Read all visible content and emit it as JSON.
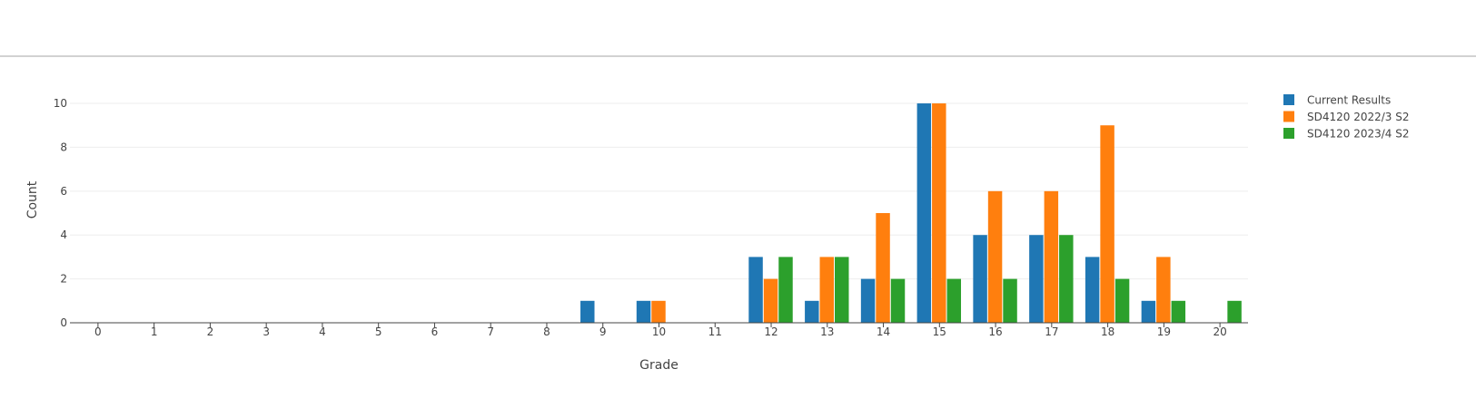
{
  "chart_data": {
    "type": "bar",
    "xlabel": "Grade",
    "ylabel": "Count",
    "categories": [
      "0",
      "1",
      "2",
      "3",
      "4",
      "5",
      "6",
      "7",
      "8",
      "9",
      "10",
      "11",
      "12",
      "13",
      "14",
      "15",
      "16",
      "17",
      "18",
      "19",
      "20"
    ],
    "yticks": [
      0,
      2,
      4,
      6,
      8,
      10
    ],
    "ylim": [
      0,
      11.2
    ],
    "grid": true,
    "legend_position": "top-right",
    "series": [
      {
        "name": "Current Results",
        "color": "#1f77b4",
        "values": [
          0,
          0,
          0,
          0,
          0,
          0,
          0,
          0,
          0,
          1,
          1,
          0,
          3,
          1,
          2,
          10,
          4,
          4,
          3,
          1,
          0
        ]
      },
      {
        "name": "SD4120 2022/3 S2",
        "color": "#ff7f0e",
        "values": [
          0,
          0,
          0,
          0,
          0,
          0,
          0,
          0,
          0,
          0,
          1,
          0,
          2,
          3,
          5,
          10,
          6,
          6,
          9,
          3,
          0
        ]
      },
      {
        "name": "SD4120 2023/4 S2",
        "color": "#2ca02c",
        "values": [
          0,
          0,
          0,
          0,
          0,
          0,
          0,
          0,
          0,
          0,
          0,
          0,
          3,
          3,
          2,
          2,
          2,
          4,
          2,
          1,
          1
        ]
      }
    ]
  }
}
